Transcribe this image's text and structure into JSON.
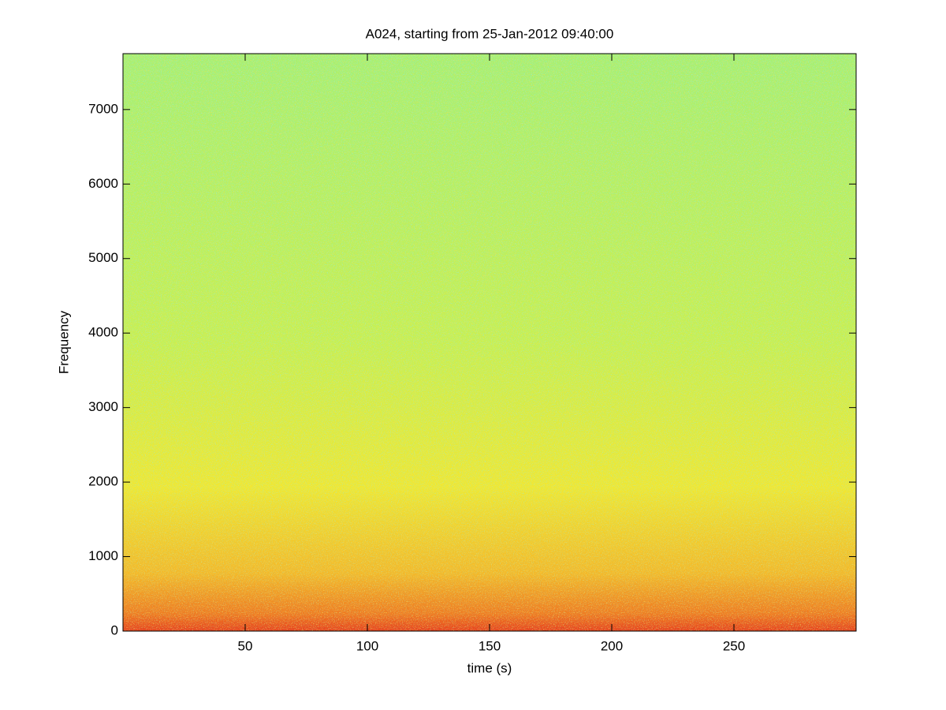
{
  "chart_data": {
    "type": "spectrogram",
    "title": "A024, starting from 25-Jan-2012 09:40:00",
    "x_label": "time (s)",
    "y_label": "Frequency",
    "xlim": [
      0,
      300
    ],
    "xticks": [
      50,
      100,
      150,
      200,
      250
    ],
    "ylim": [
      0,
      7750
    ],
    "yticks": [
      0,
      1000,
      2000,
      3000,
      4000,
      5000,
      6000,
      7000
    ]
  }
}
